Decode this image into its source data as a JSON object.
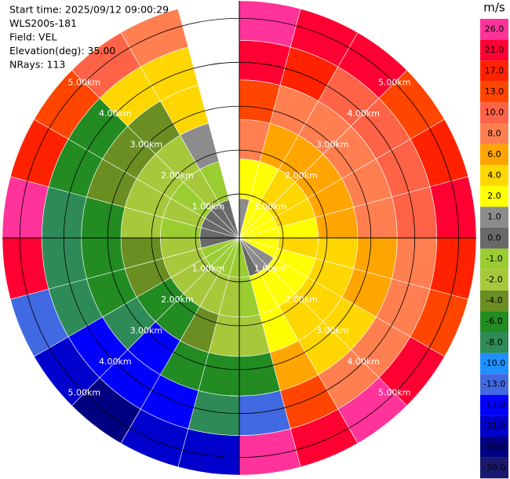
{
  "chart_data": {
    "type": "ppi",
    "info": [
      "Start time: 2025/09/12 09:00:29",
      "WLS200s-181",
      "Field: VEL",
      "Elevation(deg): 35.00",
      "NRays: 113"
    ],
    "rings": [
      {
        "value": 1,
        "label": "1.00km"
      },
      {
        "value": 2,
        "label": "2.00km"
      },
      {
        "value": 3,
        "label": "3.00km"
      },
      {
        "value": 4,
        "label": "4.00km"
      },
      {
        "value": 5,
        "label": "5.00km"
      }
    ],
    "field": {
      "azimuths": [
        0,
        15,
        30,
        45,
        60,
        75,
        90,
        105,
        120,
        135,
        150,
        165,
        180,
        195,
        210,
        225,
        240,
        255,
        270,
        285,
        300,
        315,
        330,
        345
      ],
      "gate_edges": [
        0,
        0.9,
        1.8,
        2.7,
        3.6,
        4.5,
        5.4
      ],
      "values": [
        [
          1,
          3,
          8,
          13,
          21,
          26
        ],
        [
          2,
          3,
          6,
          8,
          17,
          21
        ],
        [
          2,
          4,
          6,
          8,
          10,
          21
        ],
        [
          2,
          4,
          6,
          8,
          10,
          13
        ],
        [
          3,
          4,
          6,
          8,
          10,
          17
        ],
        [
          3,
          3,
          6,
          8,
          10,
          21
        ],
        [
          3,
          4,
          4,
          6,
          8,
          17
        ],
        [
          2,
          3,
          4,
          6,
          8,
          13
        ],
        [
          1,
          3,
          4,
          4,
          8,
          21
        ],
        [
          1,
          2,
          4,
          4,
          8,
          26
        ],
        [
          0,
          2,
          2,
          6,
          13,
          21
        ],
        [
          -1,
          -1,
          -2,
          -6,
          -13,
          26
        ],
        [
          -1,
          -2,
          -2,
          -6,
          -8,
          -21
        ],
        [
          -1,
          -2,
          -4,
          -6,
          -17,
          -21
        ],
        [
          -1,
          -2,
          -6,
          -17,
          -17,
          -26
        ],
        [
          -1,
          -2,
          -6,
          -8,
          -17,
          -21
        ],
        [
          -1,
          -2,
          -4,
          -6,
          -8,
          -13
        ],
        [
          0,
          -2,
          -4,
          -6,
          -8,
          21
        ],
        [
          0,
          -1,
          -2,
          -6,
          -8,
          26
        ],
        [
          0,
          -2,
          -2,
          -4,
          -6,
          17
        ],
        [
          0,
          -1,
          -2,
          -4,
          -6,
          13
        ],
        [
          0,
          -2,
          -2,
          -4,
          4,
          10
        ],
        [
          0,
          -1,
          1,
          4,
          4,
          8
        ],
        [
          null,
          null,
          null,
          null,
          null,
          null
        ]
      ]
    },
    "colorbar": {
      "title": "m/s",
      "ticks": [
        {
          "value": 26,
          "label": "26.0"
        },
        {
          "value": 21,
          "label": "21.0"
        },
        {
          "value": 17,
          "label": "17.0"
        },
        {
          "value": 13,
          "label": "13.0"
        },
        {
          "value": 10,
          "label": "10.0"
        },
        {
          "value": 8,
          "label": "8.0"
        },
        {
          "value": 6,
          "label": "6.0"
        },
        {
          "value": 4,
          "label": "4.0"
        },
        {
          "value": 2,
          "label": "2.0"
        },
        {
          "value": 1,
          "label": "1.0"
        },
        {
          "value": 0,
          "label": "0.0"
        },
        {
          "value": -1,
          "label": "-1.0"
        },
        {
          "value": -2,
          "label": "-2.0"
        },
        {
          "value": -4,
          "label": "-4.0"
        },
        {
          "value": -6,
          "label": "-6.0"
        },
        {
          "value": -8,
          "label": "-8.0"
        },
        {
          "value": -10,
          "label": "-10.0"
        },
        {
          "value": -13,
          "label": "-13.0"
        },
        {
          "value": -17,
          "label": "-17.0"
        },
        {
          "value": -21,
          "label": "-21.0"
        },
        {
          "value": -26,
          "label": "-26.0"
        },
        {
          "value": -30,
          "label": "-30.0"
        }
      ],
      "colors": [
        "#ff3399",
        "#ff0033",
        "#ff2200",
        "#ff4500",
        "#ff6347",
        "#ff7f50",
        "#ffa500",
        "#ffd700",
        "#ffff00",
        "#8c8c8c",
        "#696969",
        "#9acd32",
        "#a8c83c",
        "#6b8e23",
        "#228b22",
        "#2e8b57",
        "#1e90ff",
        "#4169e1",
        "#0000ff",
        "#0000cd",
        "#000080",
        "#191970"
      ]
    }
  }
}
